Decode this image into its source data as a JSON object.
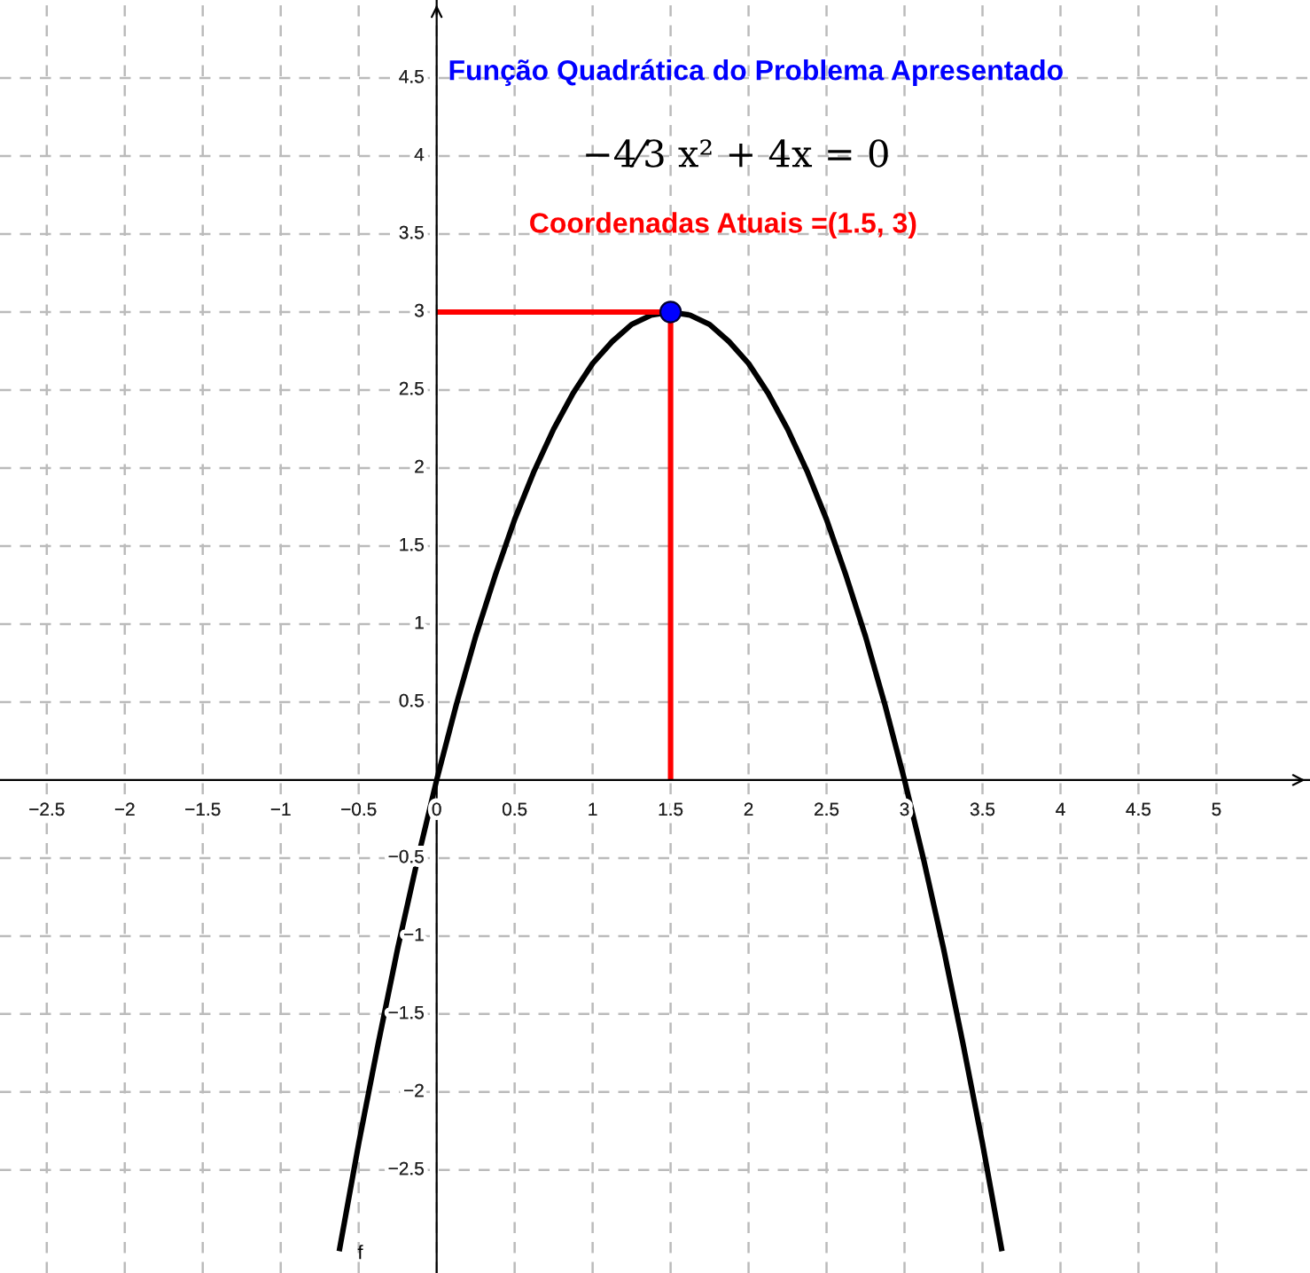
{
  "chart_data": {
    "type": "line",
    "title": "Função Quadrática do Problema Apresentado",
    "subtitle": "−4⁄3 x² + 4x = 0",
    "annotations": [
      "Coordenadas Atuais =(1.5, 3)",
      "f"
    ],
    "xlim": [
      -2.8,
      5.6
    ],
    "ylim": [
      -3.16,
      5.0
    ],
    "xticks": [
      {
        "value": -2.5,
        "label": "−2.5"
      },
      {
        "value": -2,
        "label": "−2"
      },
      {
        "value": -1.5,
        "label": "−1.5"
      },
      {
        "value": -1,
        "label": "−1"
      },
      {
        "value": -0.5,
        "label": "−0.5"
      },
      0,
      0.5,
      1,
      1.5,
      2,
      2.5,
      3,
      3.5,
      4,
      4.5,
      5
    ],
    "yticks": [
      {
        "value": -2.5,
        "label": "−2.5"
      },
      {
        "value": -2,
        "label": "−2"
      },
      {
        "value": -1.5,
        "label": "−1.5"
      },
      {
        "value": -1,
        "label": "−1"
      },
      {
        "value": -0.5,
        "label": "−0.5"
      },
      0.5,
      1,
      1.5,
      2,
      2.5,
      3,
      3.5,
      4,
      4.5
    ],
    "grid": true,
    "series": [
      {
        "type": "line",
        "color": "#000000",
        "x": [
          -0.625,
          -0.5,
          -0.375,
          -0.25,
          -0.125,
          0,
          0.125,
          0.25,
          0.375,
          0.5,
          0.625,
          0.75,
          0.875,
          1,
          1.125,
          1.25,
          1.375,
          1.5,
          1.625,
          1.75,
          1.875,
          2,
          2.125,
          2.25,
          2.375,
          2.5,
          2.625,
          2.75,
          2.875,
          3,
          3.125,
          3.25,
          3.375,
          3.5,
          3.625
        ],
        "values": [
          -3.02,
          -2.33,
          -1.69,
          -1.08,
          -0.52,
          0,
          0.48,
          0.92,
          1.31,
          1.67,
          1.98,
          2.25,
          2.48,
          2.67,
          2.81,
          2.92,
          2.98,
          3,
          2.98,
          2.92,
          2.81,
          2.67,
          2.48,
          2.25,
          1.98,
          1.67,
          1.31,
          0.92,
          0.48,
          0,
          -0.52,
          -1.08,
          -1.69,
          -2.33,
          -3.02
        ]
      },
      {
        "type": "line",
        "color": "#ff0000",
        "x": [
          0,
          1.5
        ],
        "values": [
          3,
          3
        ]
      },
      {
        "type": "line",
        "color": "#ff0000",
        "x": [
          1.5,
          1.5
        ],
        "values": [
          0,
          3
        ]
      },
      {
        "type": "scatter",
        "color": "#0000ff",
        "marker": "circle",
        "x": [
          1.5
        ],
        "values": [
          3
        ]
      }
    ]
  }
}
